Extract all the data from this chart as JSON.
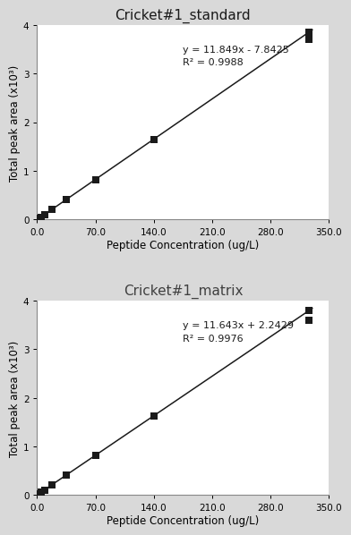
{
  "plots": [
    {
      "title": "Cricket#1_standard",
      "equation": "y = 11.849x - 7.8425",
      "r_squared": "R² = 0.9988",
      "slope": 11.849,
      "intercept": -7.8425,
      "x_data": [
        0.55,
        1.1,
        2.2,
        4.4,
        8.75,
        17.5,
        35.0,
        70.0,
        140.0,
        326.25,
        326.25
      ],
      "y_data_raw": [
        0.0,
        5.6,
        18.2,
        44.1,
        95.7,
        199.7,
        406.9,
        821.6,
        1651.1,
        3858.0,
        3706.0
      ],
      "xlabel": "Peptide Concentration (ug/L)",
      "ylabel": "Total peak area (x10³)",
      "xlim": [
        0,
        350
      ],
      "ylim": [
        0,
        4000
      ],
      "xticks": [
        0.0,
        70.0,
        140.0,
        210.0,
        280.0,
        350.0
      ],
      "yticks": [
        0,
        1000,
        2000,
        3000,
        4000
      ],
      "ytick_labels": [
        "0",
        "1",
        "2",
        "3",
        "4"
      ],
      "eq_x": 175,
      "eq_y": 3600
    },
    {
      "title": "Cricket#1_matrix",
      "equation": "y = 11.643x + 2.2429",
      "r_squared": "R² = 0.9976",
      "slope": 11.643,
      "intercept": 2.2429,
      "x_data": [
        0.55,
        1.1,
        2.2,
        4.4,
        8.75,
        17.5,
        35.0,
        70.0,
        140.0,
        326.25,
        326.25
      ],
      "y_data_raw": [
        8.6,
        15.1,
        27.9,
        53.5,
        104.1,
        205.8,
        409.7,
        817.2,
        1632.2,
        3801.7,
        3590.0
      ],
      "xlabel": "Peptide Concentration (ug/L)",
      "ylabel": "Total peak area (x10³)",
      "xlim": [
        0,
        350
      ],
      "ylim": [
        0,
        4000
      ],
      "xticks": [
        0.0,
        70.0,
        140.0,
        210.0,
        280.0,
        350.0
      ],
      "yticks": [
        0,
        1000,
        2000,
        3000,
        4000
      ],
      "ytick_labels": [
        "0",
        "1",
        "2",
        "3",
        "4"
      ],
      "eq_x": 175,
      "eq_y": 3600
    }
  ],
  "bg_color": "#d9d9d9",
  "plot_bg_color": "#ffffff",
  "marker_color": "#1a1a1a",
  "line_color": "#1a1a1a",
  "title_color_top": "#1a1a1a",
  "title_color_bottom": "#404040"
}
